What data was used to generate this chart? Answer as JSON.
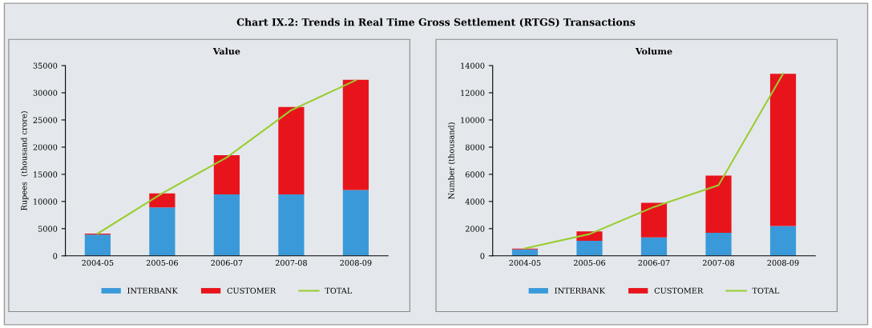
{
  "chart_data": [
    {
      "type": "bar",
      "title": "Value",
      "ylabel": "Rupees  (thousand crore)",
      "annotations": [
        "Chart IX.2: Trends in Real Time Gross Settlement (RTGS) Transactions"
      ],
      "categories": [
        "2004-05",
        "2005-06",
        "2006-07",
        "2007-08",
        "2008-09"
      ],
      "stacked": true,
      "ylim": [
        0,
        35000
      ],
      "yticks": [
        0,
        5000,
        10000,
        15000,
        20000,
        25000,
        30000,
        35000
      ],
      "grid": false,
      "legend": "bottom",
      "series": [
        {
          "name": "INTERBANK",
          "color": "#3a9ad9",
          "values": [
            3900,
            8900,
            11300,
            11300,
            12100
          ]
        },
        {
          "name": "CUSTOMER",
          "color": "#e8141c",
          "values": [
            200,
            2600,
            7200,
            16100,
            20300
          ]
        },
        {
          "name": "TOTAL",
          "type": "line",
          "color": "#9acd32",
          "values": [
            4100,
            11500,
            18100,
            26800,
            32300
          ]
        }
      ]
    },
    {
      "type": "bar",
      "title": "Volume",
      "ylabel": "Number (thousand)",
      "categories": [
        "2004-05",
        "2005-06",
        "2006-07",
        "2007-08",
        "2008-09"
      ],
      "stacked": true,
      "ylim": [
        0,
        14000
      ],
      "yticks": [
        0,
        2000,
        4000,
        6000,
        8000,
        10000,
        12000,
        14000
      ],
      "grid": false,
      "legend": "bottom",
      "series": [
        {
          "name": "INTERBANK",
          "color": "#3a9ad9",
          "values": [
            480,
            1100,
            1350,
            1700,
            2200
          ]
        },
        {
          "name": "CUSTOMER",
          "color": "#e8141c",
          "values": [
            60,
            700,
            2550,
            4200,
            11200
          ]
        },
        {
          "name": "TOTAL",
          "type": "line",
          "color": "#9acd32",
          "values": [
            540,
            1600,
            3600,
            5200,
            13400
          ]
        }
      ]
    }
  ]
}
